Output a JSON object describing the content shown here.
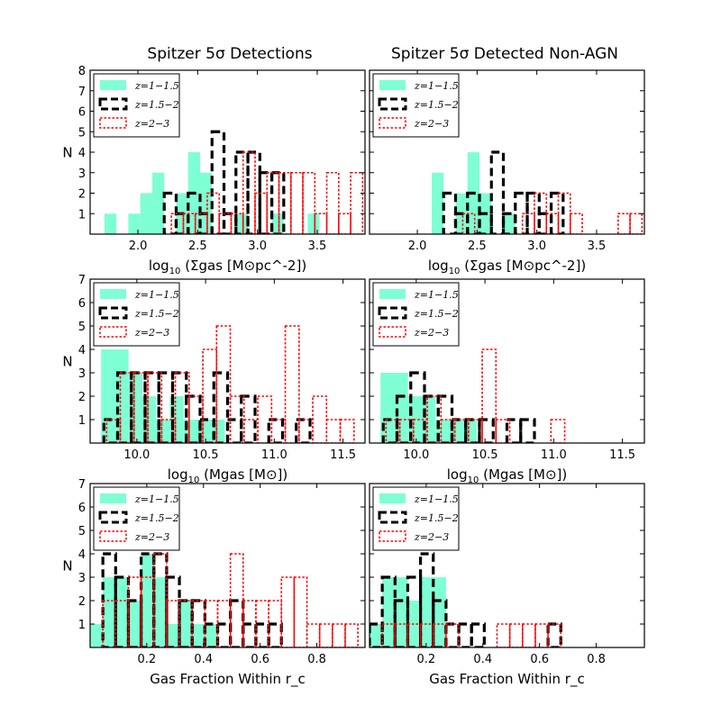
{
  "column_titles": [
    "Spitzer 5σ Detections",
    "Spitzer 5σ Detected Non-AGN"
  ],
  "legend": [
    "z=1−1.5",
    "z=1.5−2",
    "z=2−3"
  ],
  "colors": {
    "z1": "#7fffd4",
    "z2": "#000000",
    "z3": "#ff0000"
  },
  "chart_data": [
    {
      "type": "bar",
      "panel": "top-left",
      "title": "Spitzer 5σ Detections",
      "xlabel": "log10 (Σgas [M⊙pc^-2])",
      "ylabel": "N",
      "xlim": [
        1.6,
        3.9
      ],
      "ylim": [
        0,
        8
      ],
      "xticks": [
        "2.0",
        "2.5",
        "3.0",
        "3.5"
      ],
      "xtick_values": [
        2.0,
        2.5,
        3.0,
        3.5
      ],
      "yticks": [
        "1",
        "2",
        "3",
        "4",
        "5",
        "6",
        "7",
        "8"
      ],
      "bin_width": 0.1,
      "series": [
        {
          "name": "z=1−1.5",
          "style": "filled",
          "bin_starts": [
            1.72,
            1.92,
            2.02,
            2.12,
            2.32,
            2.42,
            2.52,
            2.82,
            3.12,
            3.42
          ],
          "values": [
            1,
            1,
            2,
            3,
            2,
            4,
            3,
            1,
            1,
            1
          ]
        },
        {
          "name": "z=1.5−2",
          "style": "dashed",
          "bin_starts": [
            2.22,
            2.32,
            2.42,
            2.52,
            2.62,
            2.72,
            2.82,
            2.92,
            3.02,
            3.12
          ],
          "values": [
            2,
            1,
            2,
            1,
            5,
            1,
            4,
            4,
            3,
            3
          ]
        },
        {
          "name": "z=2−3",
          "style": "dotted",
          "bin_starts": [
            2.28,
            2.38,
            2.48,
            2.58,
            2.68,
            2.78,
            2.88,
            2.98,
            3.08,
            3.18,
            3.28,
            3.38,
            3.48,
            3.58,
            3.68,
            3.78
          ],
          "values": [
            1,
            1,
            1,
            2,
            1,
            1,
            4,
            2,
            3,
            3,
            3,
            3,
            1,
            3,
            1,
            3
          ]
        }
      ]
    },
    {
      "type": "bar",
      "panel": "top-right",
      "title": "Spitzer 5σ Detected Non-AGN",
      "xlabel": "log10 (Σgas [M⊙pc^-2])",
      "ylabel": "",
      "xlim": [
        1.6,
        3.9
      ],
      "ylim": [
        0,
        8
      ],
      "xticks": [
        "2.0",
        "2.5",
        "3.0",
        "3.5"
      ],
      "xtick_values": [
        2.0,
        2.5,
        3.0,
        3.5
      ],
      "yticks": [],
      "bin_width": 0.1,
      "series": [
        {
          "name": "z=1−1.5",
          "style": "filled",
          "bin_starts": [
            2.12,
            2.32,
            2.42,
            2.52,
            2.72
          ],
          "values": [
            3,
            2,
            4,
            2,
            1
          ]
        },
        {
          "name": "z=1.5−2",
          "style": "dashed",
          "bin_starts": [
            2.22,
            2.32,
            2.42,
            2.52,
            2.62,
            2.72,
            2.82,
            2.92,
            3.02,
            3.12
          ],
          "values": [
            2,
            1,
            2,
            1,
            4,
            1,
            2,
            2,
            1,
            2
          ]
        },
        {
          "name": "z=2−3",
          "style": "dotted",
          "bin_starts": [
            2.28,
            2.38,
            2.48,
            2.58,
            2.68,
            2.78,
            2.88,
            2.98,
            3.08,
            3.18,
            3.28,
            3.38,
            3.48,
            3.58,
            3.68,
            3.78
          ],
          "values": [
            0,
            1,
            0,
            0,
            0,
            0,
            1,
            2,
            1,
            2,
            1,
            0,
            0,
            0,
            1,
            1
          ]
        }
      ]
    },
    {
      "type": "bar",
      "panel": "middle-left",
      "xlabel": "log10 (Mgas [M⊙])",
      "ylabel": "N",
      "xlim": [
        9.66,
        11.66
      ],
      "ylim": [
        0,
        7
      ],
      "xticks": [
        "10.0",
        "10.5",
        "11.0",
        "11.5"
      ],
      "xtick_values": [
        10.0,
        10.5,
        11.0,
        11.5
      ],
      "yticks": [
        "1",
        "2",
        "3",
        "4",
        "5",
        "6",
        "7"
      ],
      "bin_width": 0.1,
      "series": [
        {
          "name": "z=1−1.5",
          "style": "filled",
          "bin_starts": [
            9.74,
            9.84,
            9.94,
            10.04,
            10.14,
            10.24,
            10.34,
            10.44,
            10.54
          ],
          "values": [
            4,
            4,
            3,
            2,
            1,
            2,
            1,
            1,
            1
          ]
        },
        {
          "name": "z=1.5−2",
          "style": "dashed",
          "bin_starts": [
            9.76,
            9.86,
            9.96,
            10.06,
            10.16,
            10.26,
            10.36,
            10.46,
            10.56,
            10.66,
            10.76,
            10.86,
            10.96,
            11.06,
            11.16
          ],
          "values": [
            1,
            3,
            3,
            3,
            3,
            3,
            2,
            1,
            3,
            1,
            2,
            0,
            1,
            0,
            1
          ]
        },
        {
          "name": "z=2−3",
          "style": "dotted",
          "bin_starts": [
            9.78,
            9.88,
            9.98,
            10.08,
            10.18,
            10.28,
            10.38,
            10.48,
            10.58,
            10.68,
            10.78,
            10.88,
            10.98,
            11.08,
            11.18,
            11.28,
            11.38,
            11.48
          ],
          "values": [
            1,
            3,
            3,
            3,
            1,
            3,
            2,
            4,
            5,
            2,
            1,
            2,
            1,
            5,
            1,
            2,
            1,
            1
          ]
        }
      ]
    },
    {
      "type": "bar",
      "panel": "middle-right",
      "xlabel": "log10 (Mgas [M⊙])",
      "ylabel": "",
      "xlim": [
        9.66,
        11.66
      ],
      "ylim": [
        0,
        7
      ],
      "xticks": [
        "10.0",
        "10.5",
        "11.0",
        "11.5"
      ],
      "xtick_values": [
        10.0,
        10.5,
        11.0,
        11.5
      ],
      "yticks": [],
      "bin_width": 0.1,
      "series": [
        {
          "name": "z=1−1.5",
          "style": "filled",
          "bin_starts": [
            9.74,
            9.84,
            9.94,
            10.04,
            10.14,
            10.24,
            10.34
          ],
          "values": [
            3,
            3,
            2,
            2,
            1,
            1,
            1
          ]
        },
        {
          "name": "z=1.5−2",
          "style": "dashed",
          "bin_starts": [
            9.76,
            9.86,
            9.96,
            10.06,
            10.16,
            10.26,
            10.36,
            10.46,
            10.56,
            10.66,
            10.76
          ],
          "values": [
            1,
            2,
            3,
            2,
            2,
            1,
            1,
            1,
            0,
            1,
            1
          ]
        },
        {
          "name": "z=2−3",
          "style": "dotted",
          "bin_starts": [
            9.78,
            9.88,
            9.98,
            10.08,
            10.18,
            10.28,
            10.38,
            10.48,
            10.58,
            10.68,
            10.78,
            10.88,
            10.98
          ],
          "values": [
            1,
            1,
            1,
            2,
            1,
            1,
            1,
            4,
            1,
            0,
            0,
            0,
            1
          ]
        }
      ]
    },
    {
      "type": "bar",
      "panel": "bottom-left",
      "xlabel": "Gas Fraction Within r_c",
      "ylabel": "N",
      "xlim": [
        0.0,
        0.97
      ],
      "ylim": [
        0,
        7
      ],
      "xticks": [
        "0.2",
        "0.4",
        "0.6",
        "0.8"
      ],
      "xtick_values": [
        0.2,
        0.4,
        0.6,
        0.8
      ],
      "yticks": [
        "1",
        "2",
        "3",
        "4",
        "5",
        "6",
        "7"
      ],
      "bin_width": 0.045,
      "series": [
        {
          "name": "z=1−1.5",
          "style": "filled",
          "bin_starts": [
            0.0,
            0.045,
            0.09,
            0.135,
            0.18,
            0.225,
            0.27,
            0.315,
            0.36,
            0.405
          ],
          "values": [
            1,
            3,
            3,
            2,
            4,
            3,
            1,
            2,
            1,
            1
          ]
        },
        {
          "name": "z=1.5−2",
          "style": "dashed",
          "bin_starts": [
            0.045,
            0.09,
            0.135,
            0.18,
            0.225,
            0.27,
            0.315,
            0.36,
            0.405,
            0.45,
            0.495,
            0.54,
            0.585,
            0.63
          ],
          "values": [
            4,
            3,
            2,
            4,
            4,
            3,
            2,
            2,
            1,
            1,
            2,
            1,
            1,
            1
          ]
        },
        {
          "name": "z=2−3",
          "style": "dotted",
          "bin_starts": [
            0.045,
            0.09,
            0.135,
            0.18,
            0.225,
            0.27,
            0.315,
            0.36,
            0.405,
            0.45,
            0.495,
            0.54,
            0.585,
            0.63,
            0.675,
            0.72,
            0.765,
            0.81,
            0.855,
            0.9
          ],
          "values": [
            2,
            2,
            3,
            3,
            4,
            2,
            2,
            2,
            2,
            2,
            4,
            2,
            2,
            2,
            3,
            3,
            1,
            1,
            1,
            1
          ]
        }
      ]
    },
    {
      "type": "bar",
      "panel": "bottom-right",
      "xlabel": "Gas Fraction Within r_c",
      "ylabel": "",
      "xlim": [
        0.0,
        0.97
      ],
      "ylim": [
        0,
        7
      ],
      "xticks": [
        "0.2",
        "0.4",
        "0.6",
        "0.8"
      ],
      "xtick_values": [
        0.2,
        0.4,
        0.6,
        0.8
      ],
      "yticks": [],
      "bin_width": 0.045,
      "series": [
        {
          "name": "z=1−1.5",
          "style": "filled",
          "bin_starts": [
            0.0,
            0.045,
            0.09,
            0.135,
            0.18,
            0.225
          ],
          "values": [
            1,
            3,
            3,
            2,
            3,
            3
          ]
        },
        {
          "name": "z=1.5−2",
          "style": "dashed",
          "bin_starts": [
            0.0,
            0.045,
            0.09,
            0.135,
            0.18,
            0.225,
            0.27,
            0.315,
            0.36,
            0.405,
            0.45,
            0.495,
            0.54,
            0.585,
            0.63
          ],
          "values": [
            1,
            3,
            2,
            3,
            4,
            2,
            1,
            1,
            1,
            0,
            0,
            0,
            0,
            0,
            1
          ]
        },
        {
          "name": "z=2−3",
          "style": "dotted",
          "bin_starts": [
            0.0,
            0.045,
            0.09,
            0.135,
            0.18,
            0.225,
            0.27,
            0.315,
            0.36,
            0.405,
            0.45,
            0.495,
            0.54,
            0.585,
            0.63,
            0.675
          ],
          "values": [
            0,
            1,
            1,
            1,
            1,
            1,
            1,
            0,
            0,
            0,
            1,
            1,
            1,
            1,
            1,
            0
          ]
        }
      ]
    }
  ]
}
